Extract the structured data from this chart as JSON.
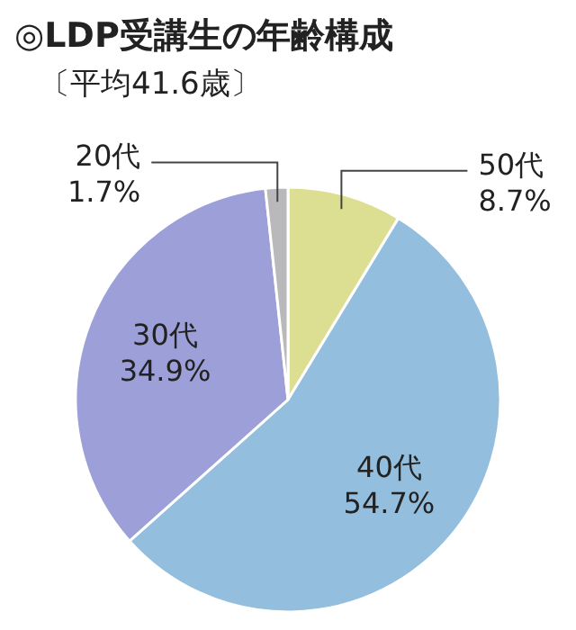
{
  "chart_data": {
    "type": "pie",
    "title": "◎LDP受講生の年齢構成",
    "subtitle": "〔平均41.6歳〕",
    "categories": [
      "50代",
      "40代",
      "30代",
      "20代"
    ],
    "values": [
      8.7,
      54.7,
      34.9,
      1.7
    ],
    "value_labels": [
      "8.7%",
      "54.7%",
      "34.9%",
      "1.7%"
    ],
    "colors": [
      "#dcdf92",
      "#93bedd",
      "#9c9fd8",
      "#b9b9bb"
    ]
  }
}
